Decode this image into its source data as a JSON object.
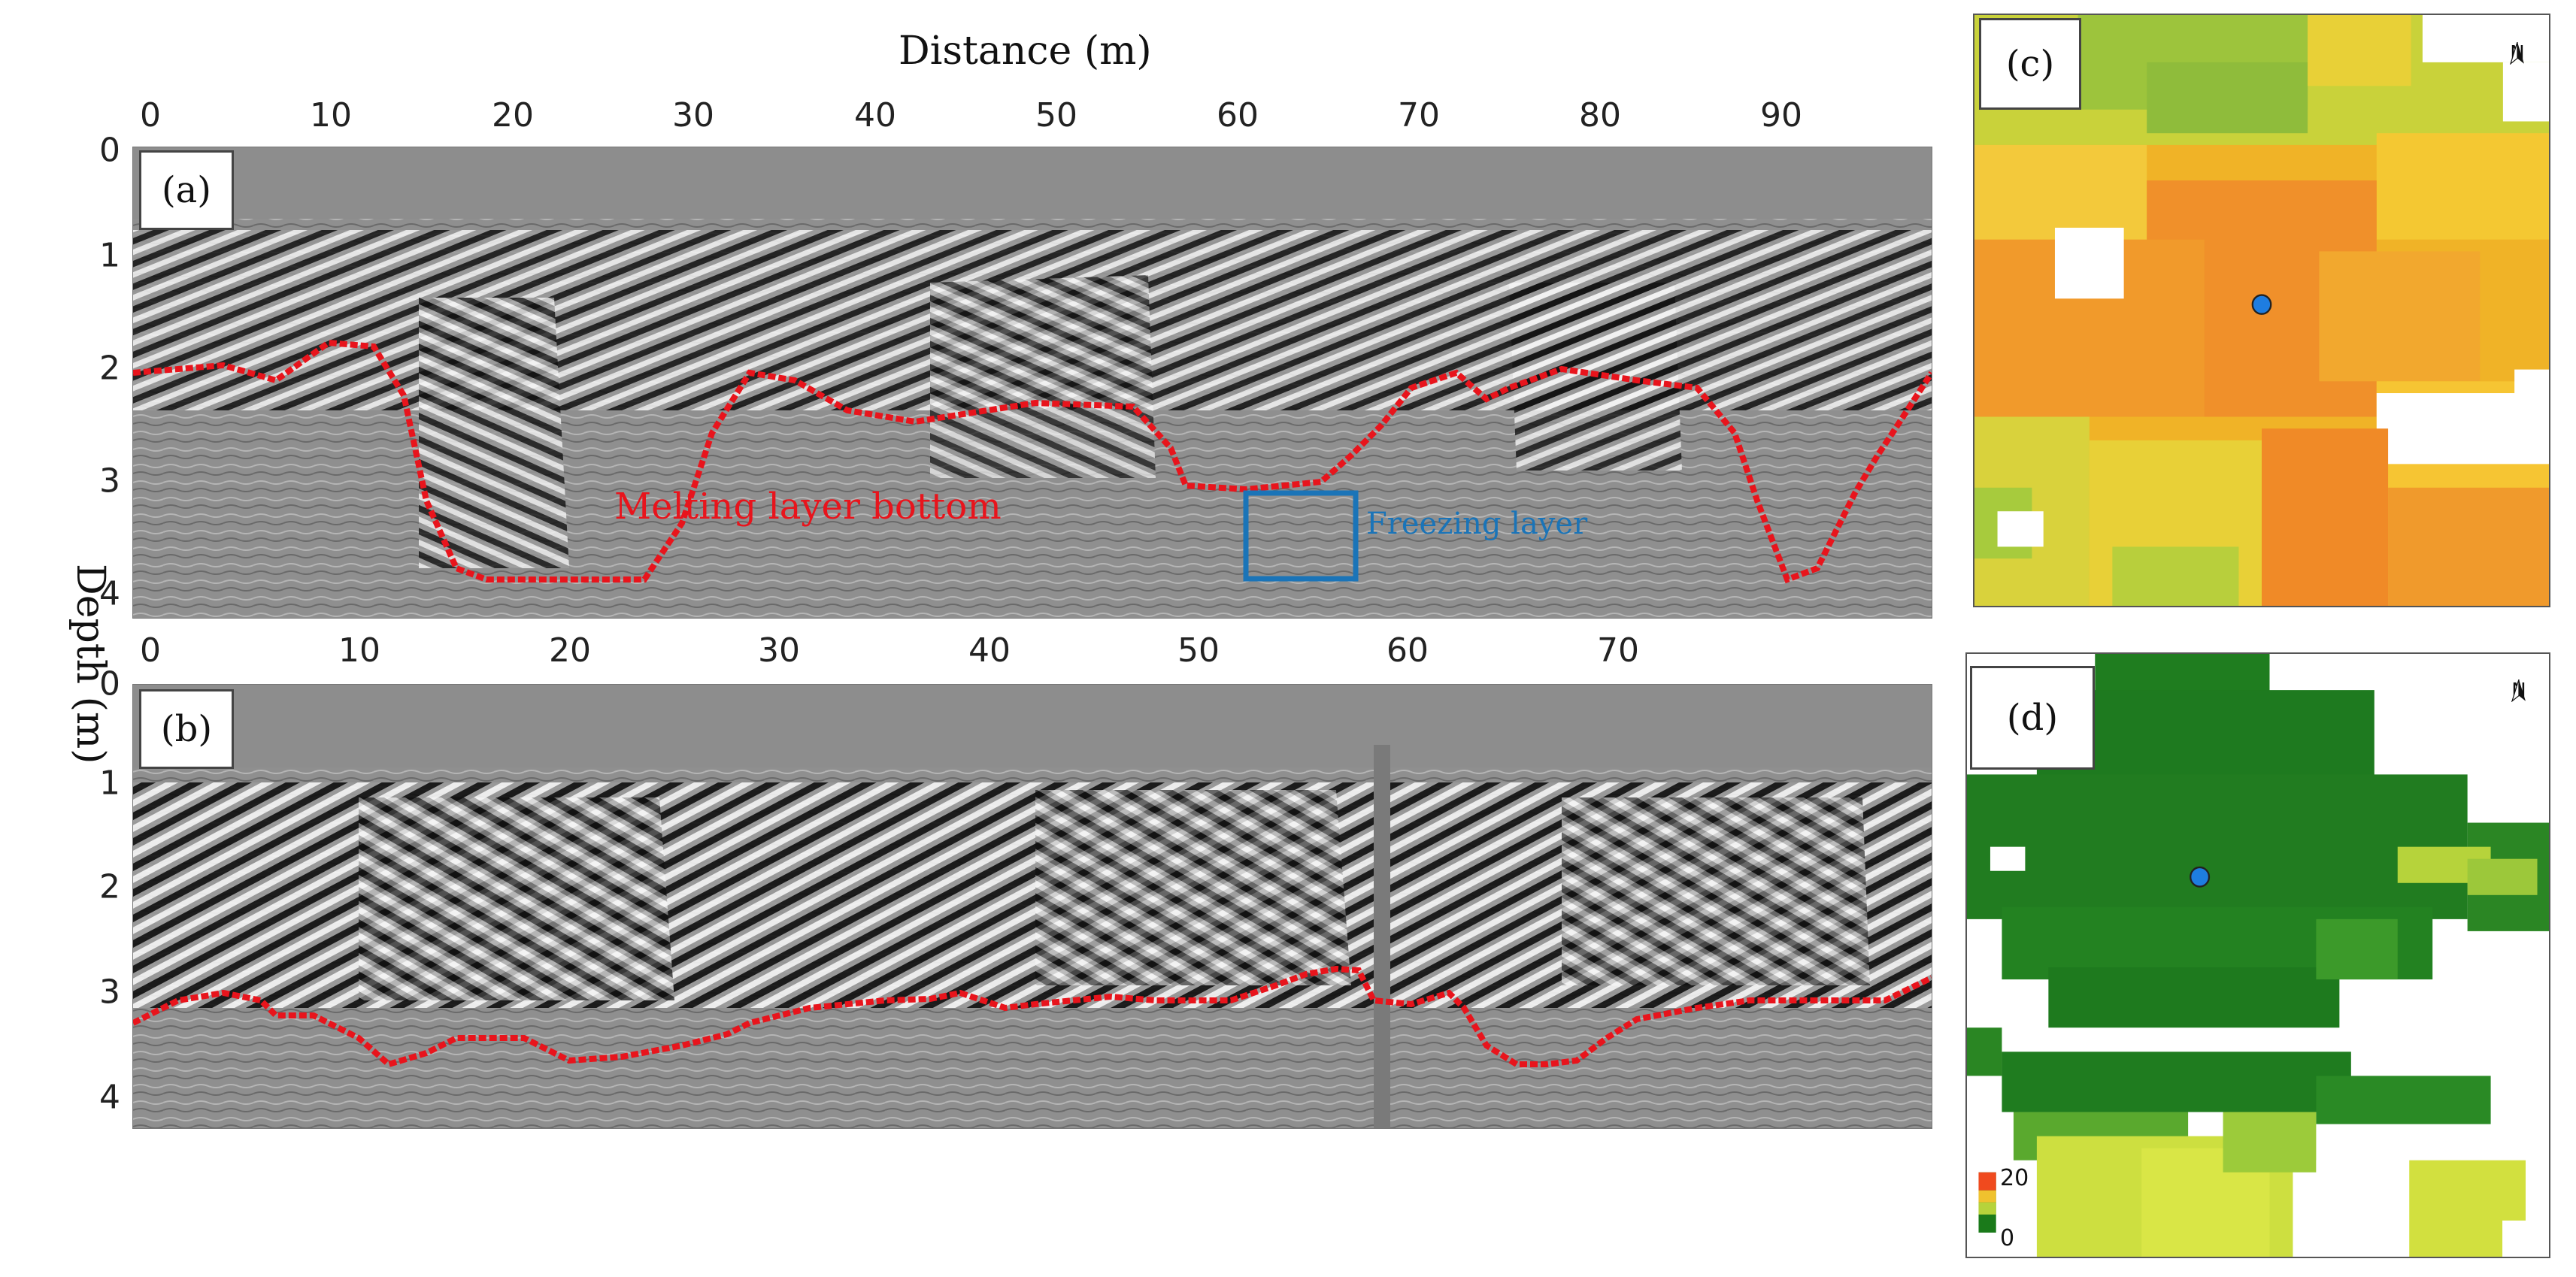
{
  "figure": {
    "distance_title": "Distance (m)",
    "depth_title": "Depth (m)"
  },
  "panel_a": {
    "label": "(a)",
    "x_ticks": [
      "0",
      "10",
      "20",
      "30",
      "40",
      "50",
      "60",
      "70",
      "80",
      "90"
    ],
    "y_ticks": [
      "0",
      "1",
      "2",
      "3",
      "4"
    ],
    "annotation_melting": "Melting layer bottom",
    "annotation_freezing": "Freezing layer",
    "melting_color": "#e8141c",
    "freezing_color": "#1a74b8"
  },
  "panel_b": {
    "label": "(b)",
    "x_ticks": [
      "0",
      "10",
      "20",
      "30",
      "40",
      "50",
      "60",
      "70"
    ],
    "y_ticks": [
      "0",
      "1",
      "2",
      "3",
      "4"
    ]
  },
  "panel_c": {
    "label": "(c)",
    "north": "N"
  },
  "panel_d": {
    "label": "(d)",
    "north": "N",
    "legend_max": "20",
    "legend_min": "0"
  }
}
